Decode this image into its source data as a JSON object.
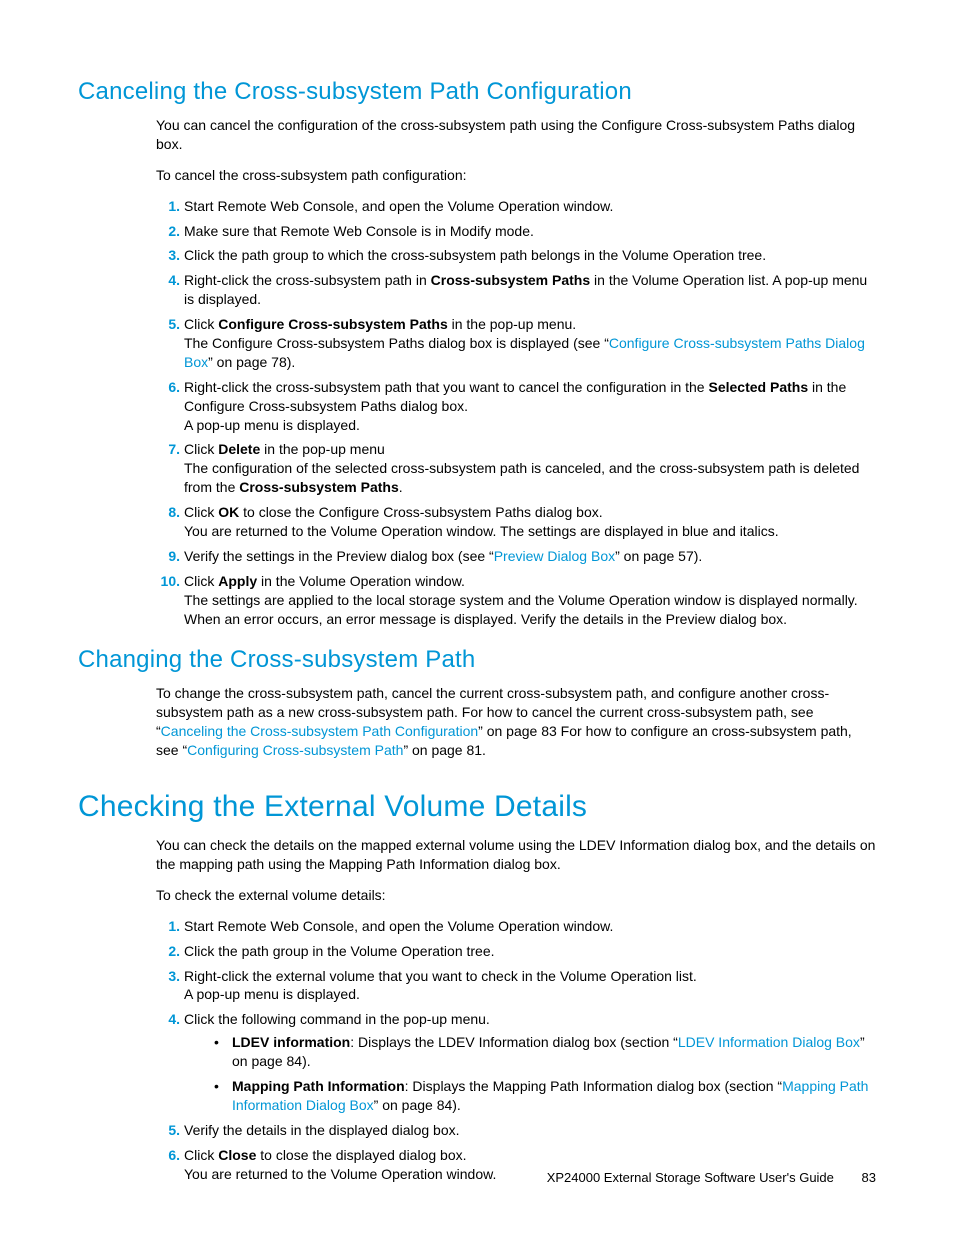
{
  "colors": {
    "accent": "#0096d6",
    "text": "#000000",
    "bg": "#ffffff"
  },
  "typography": {
    "h1_fontsize": 30,
    "h2_fontsize": 24,
    "body_fontsize": 14,
    "line_height": 1.35
  },
  "sec1": {
    "title": "Canceling the Cross-subsystem Path Configuration",
    "p1": "You can cancel the configuration of the cross-subsystem path using the Configure Cross-subsystem Paths dialog box.",
    "p2": "To cancel the cross-subsystem path configuration:",
    "s1": "Start Remote Web Console, and open the Volume Operation window.",
    "s2": "Make sure that Remote Web Console is in Modify mode.",
    "s3": "Click the path group to which the cross-subsystem path belongs in the Volume Operation tree.",
    "s4a": "Right-click the cross-subsystem path in ",
    "s4b": "Cross-subsystem Paths",
    "s4c": " in the Volume Operation list. A pop-up menu is displayed.",
    "s5a": "Click ",
    "s5b": "Configure Cross-subsystem Paths",
    "s5c": " in the pop-up menu.",
    "s5d": "The Configure Cross-subsystem Paths dialog box is displayed (see “",
    "s5link": "Configure Cross-subsystem Paths Dialog Box",
    "s5e": "” on page 78).",
    "s6a": "Right-click the cross-subsystem path that you want to cancel the configuration in the ",
    "s6b": "Selected Paths",
    "s6c": " in the Configure Cross-subsystem Paths dialog box.",
    "s6d": "A pop-up menu is displayed.",
    "s7a": "Click ",
    "s7b": "Delete",
    "s7c": " in the pop-up menu",
    "s7d": "The configuration of the selected cross-subsystem path is canceled, and the cross-subsystem path is deleted from the ",
    "s7e": "Cross-subsystem Paths",
    "s7f": ".",
    "s8a": "Click ",
    "s8b": "OK",
    "s8c": " to close the Configure Cross-subsystem Paths dialog box.",
    "s8d": "You are returned to the Volume Operation window. The settings are displayed in blue and italics.",
    "s9a": "Verify the settings in the Preview dialog box (see “",
    "s9link": "Preview Dialog Box",
    "s9b": "” on page 57).",
    "s10a": "Click ",
    "s10b": "Apply",
    "s10c": " in the Volume Operation window.",
    "s10d": "The settings are applied to the local storage system and the Volume Operation window is displayed normally. When an error occurs, an error message is displayed. Verify the details in the Preview dialog box."
  },
  "sec2": {
    "title": "Changing the Cross-subsystem Path",
    "p1a": "To change the cross-subsystem path, cancel the current cross-subsystem path, and configure another cross-subsystem path as a new cross-subsystem path. For how to cancel the current cross-subsystem path, see “",
    "link1": "Canceling the Cross-subsystem Path Configuration",
    "p1b": "” on page 83 For how to configure an cross-subsystem path, see “",
    "link2": "Configuring Cross-subsystem Path",
    "p1c": "” on page 81."
  },
  "sec3": {
    "title": "Checking the External Volume Details",
    "p1": "You can check the details on the mapped external volume using the LDEV Information dialog box, and the details on the mapping path using the Mapping Path Information dialog box.",
    "p2": "To check the external volume details:",
    "s1": "Start Remote Web Console, and open the Volume Operation window.",
    "s2": "Click the path group in the Volume Operation tree.",
    "s3a": "Right-click the external volume that you want to check in the Volume Operation list.",
    "s3b": "A pop-up menu is displayed.",
    "s4": "Click the following command in the pop-up menu.",
    "b1a": "LDEV information",
    "b1b": ": Displays the LDEV Information dialog box (section “",
    "b1link": "LDEV Information Dialog Box",
    "b1c": "” on page 84).",
    "b2a": "Mapping Path Information",
    "b2b": ": Displays the Mapping Path Information dialog box (section “",
    "b2link": "Mapping Path Information Dialog Box",
    "b2c": "” on page 84).",
    "s5": "Verify the details in the displayed dialog box.",
    "s6a": "Click ",
    "s6b": "Close",
    "s6c": " to close the displayed dialog box.",
    "s6d": "You are returned to the Volume Operation window."
  },
  "footer": {
    "doc": "XP24000 External Storage Software User's Guide",
    "page": "83"
  },
  "nums": {
    "n1": "1.",
    "n2": "2.",
    "n3": "3.",
    "n4": "4.",
    "n5": "5.",
    "n6": "6.",
    "n7": "7.",
    "n8": "8.",
    "n9": "9.",
    "n10": "10."
  }
}
